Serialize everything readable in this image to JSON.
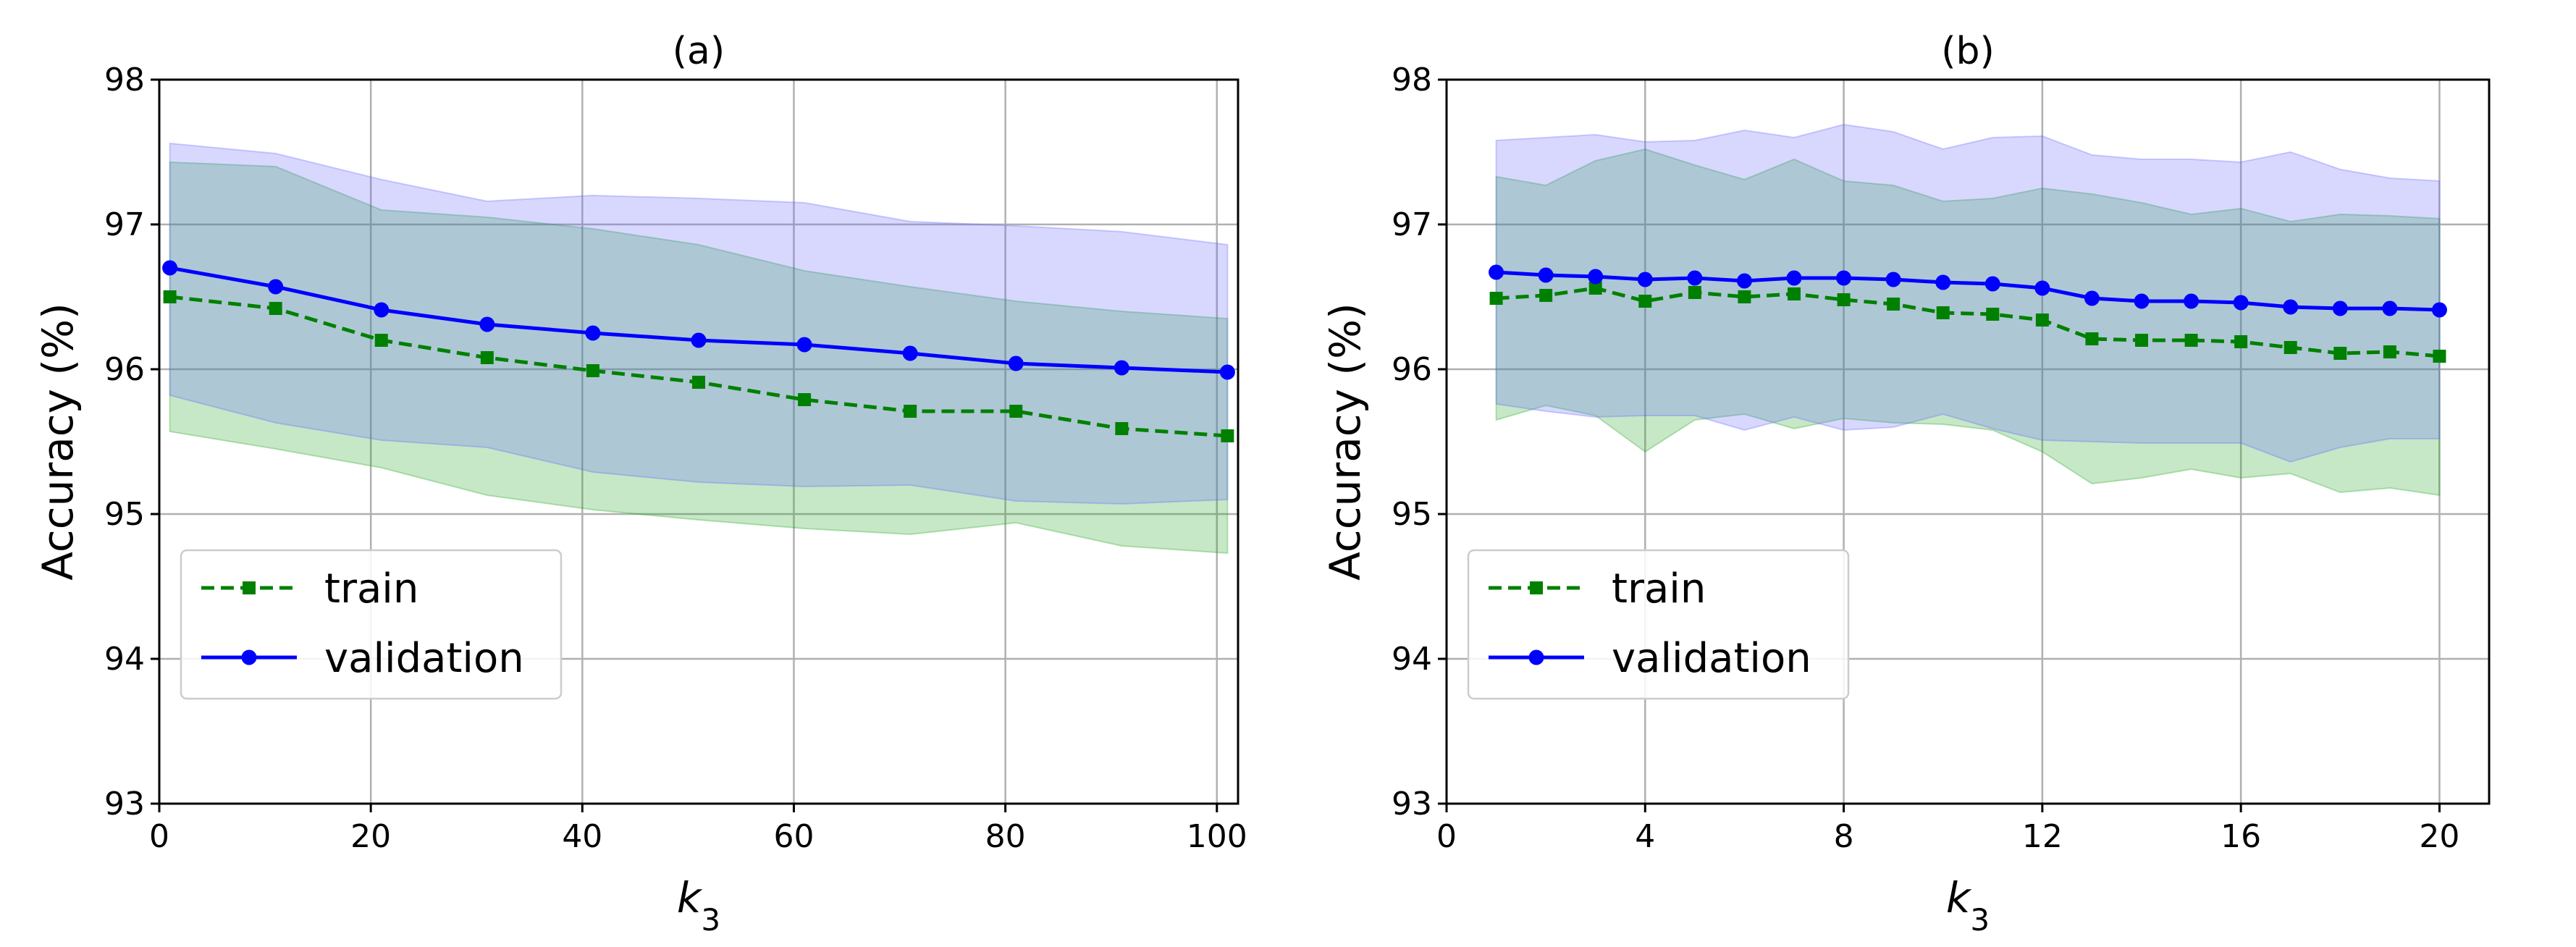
{
  "chart_data": [
    {
      "type": "line",
      "title": "(a)",
      "xlabel": "k3",
      "ylabel": "Accuracy (%)",
      "xlim": [
        0,
        102
      ],
      "ylim": [
        93,
        98
      ],
      "xticks": [
        0,
        20,
        40,
        60,
        80,
        100
      ],
      "yticks": [
        93,
        94,
        95,
        96,
        97,
        98
      ],
      "grid": true,
      "legend": "lower-left",
      "x": [
        1,
        11,
        21,
        31,
        41,
        51,
        61,
        71,
        81,
        91,
        101
      ],
      "series": [
        {
          "name": "train",
          "style": "dashed-square",
          "color": "#008000",
          "band_color": "#1fa51f",
          "values": [
            96.5,
            96.42,
            96.2,
            96.08,
            95.99,
            95.91,
            95.79,
            95.71,
            95.71,
            95.59,
            95.54
          ],
          "upper": [
            97.43,
            97.4,
            97.1,
            97.05,
            96.97,
            96.86,
            96.68,
            96.57,
            96.47,
            96.4,
            96.35
          ],
          "lower": [
            95.57,
            95.45,
            95.32,
            95.13,
            95.03,
            94.96,
            94.9,
            94.86,
            94.94,
            94.78,
            94.73
          ]
        },
        {
          "name": "validation",
          "style": "solid-circle",
          "color": "#0000ff",
          "band_color": "#6464ff",
          "values": [
            96.7,
            96.57,
            96.41,
            96.31,
            96.25,
            96.2,
            96.17,
            96.11,
            96.04,
            96.01,
            95.98
          ],
          "upper": [
            97.56,
            97.49,
            97.31,
            97.16,
            97.2,
            97.18,
            97.15,
            97.02,
            96.99,
            96.95,
            96.86
          ],
          "lower": [
            95.82,
            95.63,
            95.51,
            95.46,
            95.29,
            95.22,
            95.19,
            95.2,
            95.09,
            95.07,
            95.1
          ]
        }
      ]
    },
    {
      "type": "line",
      "title": "(b)",
      "xlabel": "k3",
      "ylabel": "Accuracy (%)",
      "xlim": [
        0,
        21
      ],
      "ylim": [
        93,
        98
      ],
      "xticks": [
        0,
        4,
        8,
        12,
        16,
        20
      ],
      "yticks": [
        93,
        94,
        95,
        96,
        97,
        98
      ],
      "grid": true,
      "legend": "lower-left",
      "x": [
        1,
        2,
        3,
        4,
        5,
        6,
        7,
        8,
        9,
        10,
        11,
        12,
        13,
        14,
        15,
        16,
        17,
        18,
        19,
        20
      ],
      "series": [
        {
          "name": "train",
          "style": "dashed-square",
          "color": "#008000",
          "band_color": "#1fa51f",
          "values": [
            96.49,
            96.51,
            96.56,
            96.47,
            96.53,
            96.5,
            96.52,
            96.48,
            96.45,
            96.39,
            96.38,
            96.34,
            96.21,
            96.2,
            96.2,
            96.19,
            96.15,
            96.11,
            96.12,
            96.09
          ],
          "upper": [
            97.33,
            97.27,
            97.44,
            97.52,
            97.41,
            97.31,
            97.45,
            97.3,
            97.27,
            97.16,
            97.18,
            97.25,
            97.21,
            97.15,
            97.07,
            97.11,
            97.02,
            97.07,
            97.06,
            97.04
          ],
          "lower": [
            95.65,
            95.75,
            95.68,
            95.43,
            95.65,
            95.69,
            95.59,
            95.66,
            95.63,
            95.62,
            95.58,
            95.43,
            95.21,
            95.25,
            95.31,
            95.25,
            95.28,
            95.15,
            95.18,
            95.13
          ]
        },
        {
          "name": "validation",
          "style": "solid-circle",
          "color": "#0000ff",
          "band_color": "#6464ff",
          "values": [
            96.67,
            96.65,
            96.64,
            96.62,
            96.63,
            96.61,
            96.63,
            96.63,
            96.62,
            96.6,
            96.59,
            96.56,
            96.49,
            96.47,
            96.47,
            96.46,
            96.43,
            96.42,
            96.42,
            96.41
          ],
          "upper": [
            97.58,
            97.6,
            97.62,
            97.57,
            97.58,
            97.65,
            97.6,
            97.69,
            97.64,
            97.52,
            97.6,
            97.61,
            97.48,
            97.45,
            97.45,
            97.43,
            97.5,
            97.38,
            97.32,
            97.3
          ],
          "lower": [
            95.76,
            95.71,
            95.67,
            95.68,
            95.68,
            95.58,
            95.67,
            95.58,
            95.6,
            95.69,
            95.59,
            95.51,
            95.5,
            95.49,
            95.49,
            95.49,
            95.36,
            95.46,
            95.52,
            95.52
          ]
        }
      ]
    }
  ]
}
